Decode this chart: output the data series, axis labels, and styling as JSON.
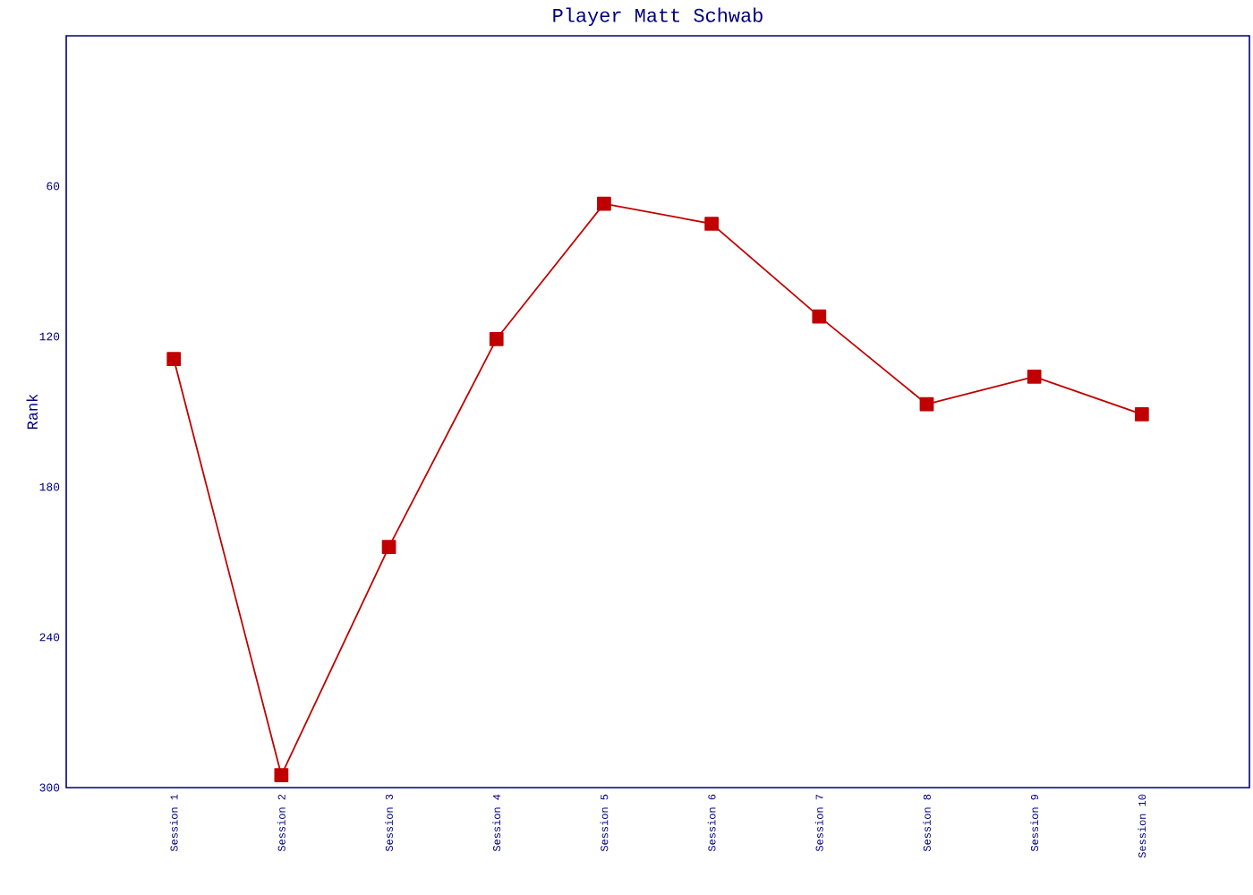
{
  "chart_data": {
    "type": "line",
    "title": "Player Matt Schwab",
    "ylabel": "Rank",
    "categories": [
      "Session 1",
      "Session 2",
      "Session 3",
      "Session 4",
      "Session 5",
      "Session 6",
      "Session 7",
      "Session 8",
      "Session 9",
      "Session 10"
    ],
    "series": [
      {
        "color": "#c00000",
        "values": [
          129,
          295,
          204,
          121,
          67,
          75,
          112,
          147,
          136,
          151
        ]
      }
    ],
    "ylim": [
      300,
      0
    ],
    "yticks": [
      60,
      120,
      180,
      240,
      300
    ],
    "marker": "square",
    "grid": false
  }
}
